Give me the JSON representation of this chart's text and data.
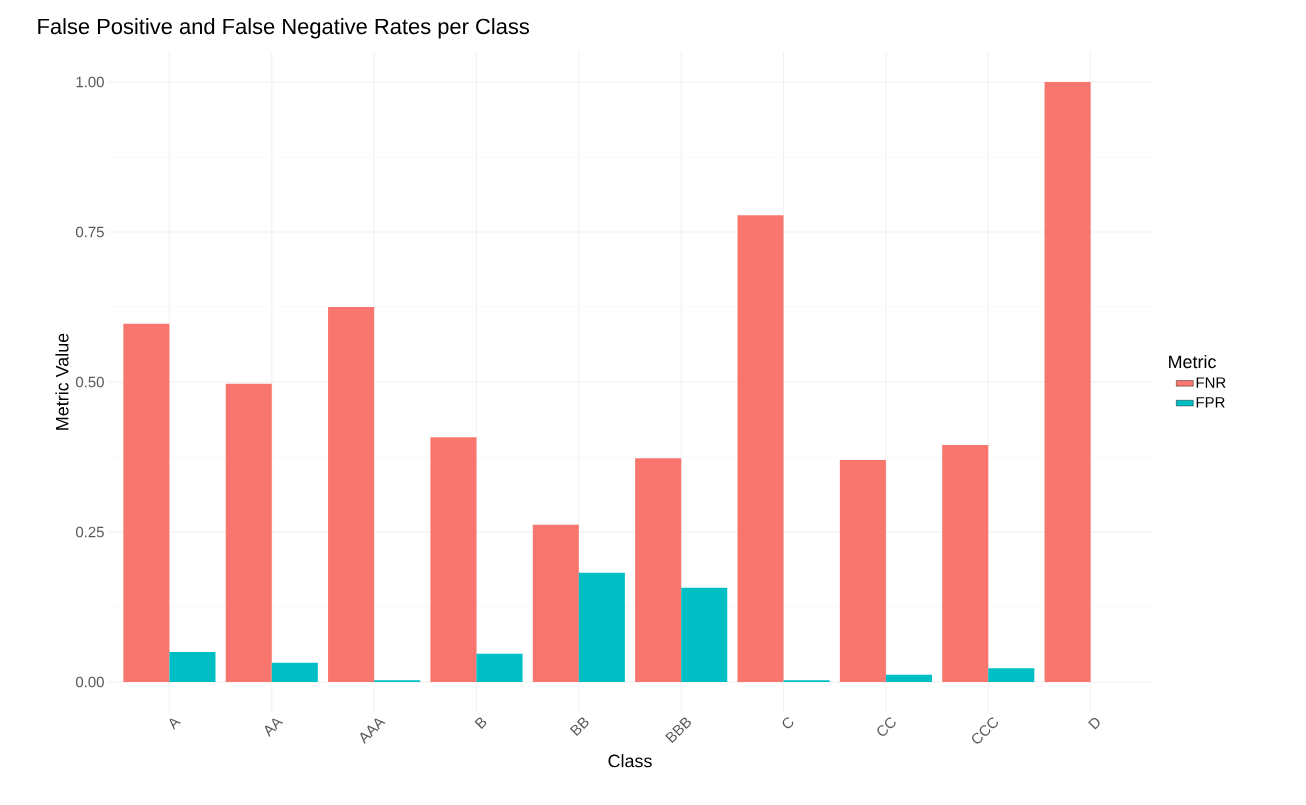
{
  "chart_data": {
    "type": "bar",
    "title": "False Positive and False Negative Rates per Class",
    "xlabel": "Class",
    "ylabel": "Metric Value",
    "legend_title": "Metric",
    "categories": [
      "A",
      "AA",
      "AAA",
      "B",
      "BB",
      "BBB",
      "C",
      "CC",
      "CCC",
      "D"
    ],
    "series": [
      {
        "name": "FNR",
        "color": "#f8766d",
        "values": [
          0.597,
          0.497,
          0.625,
          0.408,
          0.262,
          0.373,
          0.778,
          0.37,
          0.395,
          1.0
        ]
      },
      {
        "name": "FPR",
        "color": "#00bfc4",
        "values": [
          0.05,
          0.032,
          0.003,
          0.047,
          0.182,
          0.157,
          0.003,
          0.012,
          0.023,
          0.0
        ]
      }
    ],
    "ylim": [
      -0.05,
      1.05
    ],
    "yticks": [
      {
        "value": 0,
        "label": "0.00"
      },
      {
        "value": 0.25,
        "label": "0.25"
      },
      {
        "value": 0.5,
        "label": "0.50"
      },
      {
        "value": 0.75,
        "label": "0.75"
      },
      {
        "value": 1,
        "label": "1.00"
      }
    ],
    "grid": true,
    "legend": "right"
  }
}
